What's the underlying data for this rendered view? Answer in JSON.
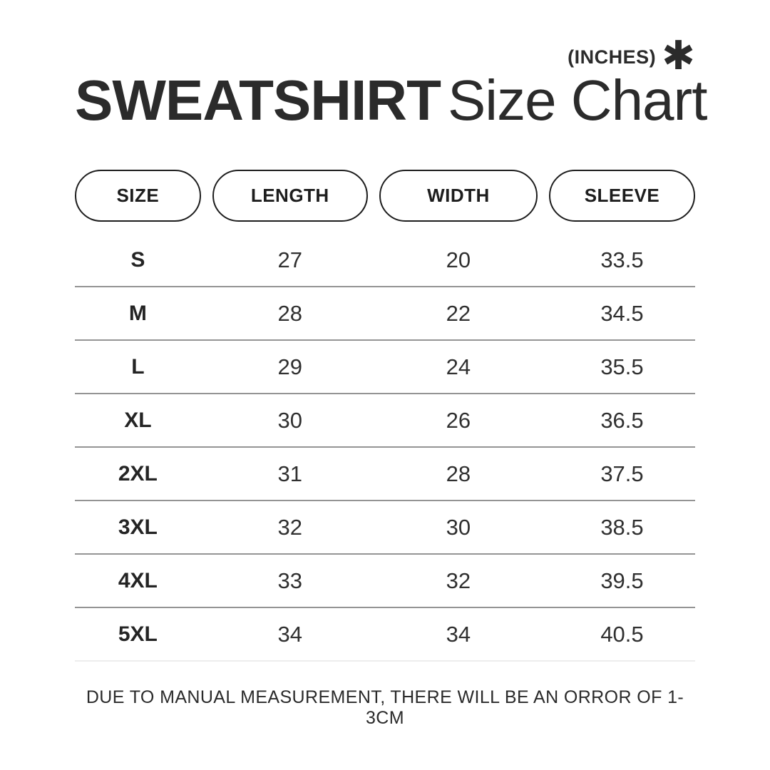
{
  "colors": {
    "background": "#ffffff",
    "text": "#303030",
    "title": "#2b2b2b",
    "pill_border": "#1d1d1d",
    "divider": "#949494",
    "divider_light": "#ededed"
  },
  "header": {
    "units_label": "(INCHES)",
    "asterisk_icon": "✱",
    "title_bold": "SWEATSHIRT",
    "title_regular": "Size Chart"
  },
  "table": {
    "columns": [
      "SIZE",
      "LENGTH",
      "WIDTH",
      "SLEEVE"
    ],
    "rows": [
      {
        "size": "S",
        "length": "27",
        "width": "20",
        "sleeve": "33.5"
      },
      {
        "size": "M",
        "length": "28",
        "width": "22",
        "sleeve": "34.5"
      },
      {
        "size": "L",
        "length": "29",
        "width": "24",
        "sleeve": "35.5"
      },
      {
        "size": "XL",
        "length": "30",
        "width": "26",
        "sleeve": "36.5"
      },
      {
        "size": "2XL",
        "length": "31",
        "width": "28",
        "sleeve": "37.5"
      },
      {
        "size": "3XL",
        "length": "32",
        "width": "30",
        "sleeve": "38.5"
      },
      {
        "size": "4XL",
        "length": "33",
        "width": "32",
        "sleeve": "39.5"
      },
      {
        "size": "5XL",
        "length": "34",
        "width": "34",
        "sleeve": "40.5"
      }
    ]
  },
  "footer": {
    "note": "DUE TO MANUAL MEASUREMENT, THERE WILL BE AN ORROR OF 1-3CM"
  },
  "chart_data": {
    "type": "table",
    "title": "SWEATSHIRT Size Chart",
    "units": "INCHES",
    "columns": [
      "SIZE",
      "LENGTH",
      "WIDTH",
      "SLEEVE"
    ],
    "rows": [
      [
        "S",
        27,
        20,
        33.5
      ],
      [
        "M",
        28,
        22,
        34.5
      ],
      [
        "L",
        29,
        24,
        35.5
      ],
      [
        "XL",
        30,
        26,
        36.5
      ],
      [
        "2XL",
        31,
        28,
        37.5
      ],
      [
        "3XL",
        32,
        30,
        38.5
      ],
      [
        "4XL",
        33,
        32,
        39.5
      ],
      [
        "5XL",
        34,
        34,
        40.5
      ]
    ],
    "note": "DUE TO MANUAL MEASUREMENT, THERE WILL BE AN ORROR OF 1-3CM"
  }
}
